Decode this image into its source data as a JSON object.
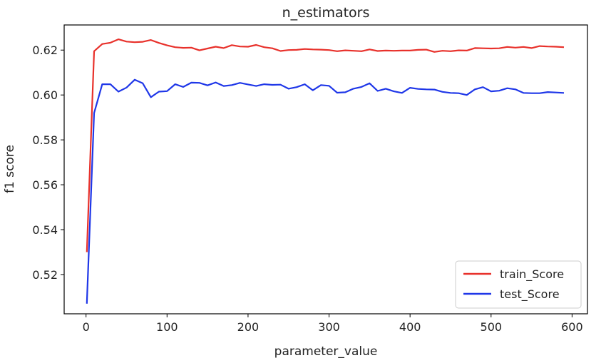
{
  "chart_data": {
    "type": "line",
    "title": "n_estimators",
    "xlabel": "parameter_value",
    "ylabel": "f1 score",
    "xlim": [
      -27,
      619
    ],
    "ylim": [
      0.5025,
      0.6312
    ],
    "xticks": [
      0,
      100,
      200,
      300,
      400,
      500,
      600
    ],
    "xtick_labels": [
      "0",
      "100",
      "200",
      "300",
      "400",
      "500",
      "600"
    ],
    "yticks": [
      0.52,
      0.54,
      0.56,
      0.58,
      0.6,
      0.62
    ],
    "ytick_labels": [
      "0.52",
      "0.54",
      "0.56",
      "0.58",
      "0.60",
      "0.62"
    ],
    "grid": false,
    "legend_position": "bottom-right",
    "x": [
      1,
      10,
      20,
      30,
      40,
      50,
      60,
      70,
      80,
      90,
      100,
      110,
      120,
      130,
      140,
      150,
      160,
      170,
      180,
      190,
      200,
      210,
      220,
      230,
      240,
      250,
      260,
      270,
      280,
      290,
      300,
      310,
      320,
      330,
      340,
      350,
      360,
      370,
      380,
      390,
      400,
      410,
      420,
      430,
      440,
      450,
      460,
      470,
      480,
      490,
      500,
      510,
      520,
      530,
      540,
      550,
      560,
      570,
      580,
      590
    ],
    "series": [
      {
        "name": "train_Score",
        "color": "#e8312b",
        "values": [
          0.53,
          0.6195,
          0.6227,
          0.6233,
          0.6248,
          0.6238,
          0.6235,
          0.6237,
          0.6245,
          0.6232,
          0.6221,
          0.6213,
          0.621,
          0.6211,
          0.6199,
          0.6207,
          0.6215,
          0.6209,
          0.6222,
          0.6216,
          0.6215,
          0.6223,
          0.6213,
          0.6208,
          0.6196,
          0.62,
          0.6201,
          0.6205,
          0.6203,
          0.6202,
          0.62,
          0.6195,
          0.6199,
          0.6197,
          0.6195,
          0.6203,
          0.6196,
          0.6198,
          0.6197,
          0.6198,
          0.6198,
          0.6201,
          0.6202,
          0.6192,
          0.6197,
          0.6195,
          0.6199,
          0.6198,
          0.6209,
          0.6208,
          0.6207,
          0.6208,
          0.6214,
          0.6211,
          0.6214,
          0.6209,
          0.6218,
          0.6216,
          0.6215,
          0.6213
        ]
      },
      {
        "name": "test_Score",
        "color": "#1f37e8",
        "values": [
          0.507,
          0.592,
          0.6048,
          0.6048,
          0.6015,
          0.6033,
          0.6068,
          0.6052,
          0.599,
          0.6015,
          0.6017,
          0.6048,
          0.6036,
          0.6055,
          0.6054,
          0.6043,
          0.6056,
          0.604,
          0.6044,
          0.6054,
          0.6047,
          0.604,
          0.6048,
          0.6045,
          0.6046,
          0.6028,
          0.6035,
          0.6048,
          0.6021,
          0.6044,
          0.6041,
          0.601,
          0.6012,
          0.6028,
          0.6036,
          0.6052,
          0.6018,
          0.6028,
          0.6016,
          0.6009,
          0.6032,
          0.6027,
          0.6025,
          0.6024,
          0.6014,
          0.6009,
          0.6008,
          0.6,
          0.6025,
          0.6035,
          0.6016,
          0.6019,
          0.603,
          0.6025,
          0.6009,
          0.6008,
          0.6008,
          0.6013,
          0.6011,
          0.6009
        ]
      }
    ]
  }
}
